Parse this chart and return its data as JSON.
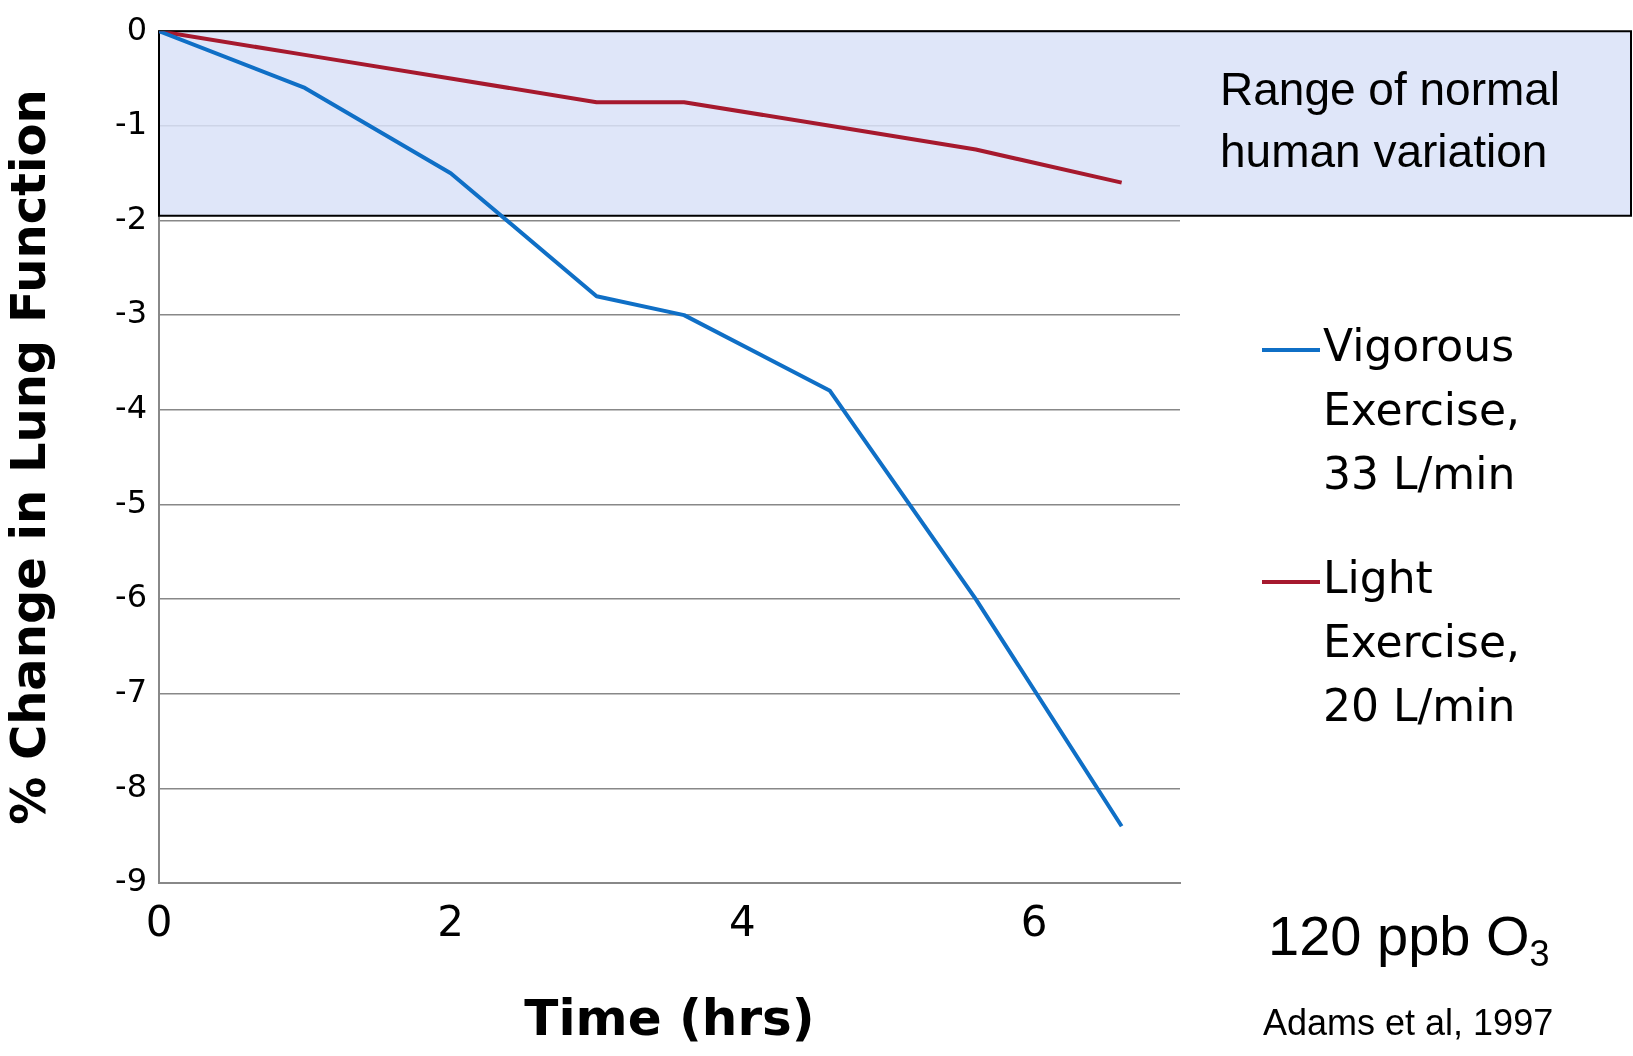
{
  "chart_data": {
    "type": "line",
    "xlabel": "Time (hrs)",
    "ylabel": "% Change in Lung Function",
    "series": [
      {
        "name": "Vigorous Exercise, 33 L/min",
        "color": "#0f6fc6",
        "x": [
          0,
          1,
          2,
          3,
          3.6,
          4.6,
          5.6,
          6.6
        ],
        "values": [
          0,
          -0.6,
          -1.5,
          -2.8,
          -3,
          -3.8,
          -6,
          -8.4
        ]
      },
      {
        "name": "Light Exercise, 20 L/min",
        "color": "#a6192e",
        "x": [
          0,
          1,
          2,
          3,
          3.6,
          4.6,
          5.6,
          6.6
        ],
        "values": [
          0,
          -0.25,
          -0.5,
          -0.75,
          -0.75,
          -1,
          -1.25,
          -1.6
        ]
      }
    ],
    "xlim": [
      0,
      7
    ],
    "xticks": [
      0,
      2,
      4,
      6
    ],
    "ylim": [
      -9,
      0
    ],
    "yticks": [
      -9,
      -8,
      -7,
      -6,
      -5,
      -4,
      -3,
      -2,
      -1,
      0
    ],
    "grid": "y",
    "legend": "right",
    "marker": "none",
    "line_style": "solid",
    "bands": [
      {
        "axis": "y",
        "from": -1.95,
        "to": 0,
        "label": "Range of normal human variation",
        "color": "#d9e2f8"
      }
    ],
    "annotations": [
      "120 ppb O$_{3}$",
      "Adams et al, 1997"
    ]
  }
}
